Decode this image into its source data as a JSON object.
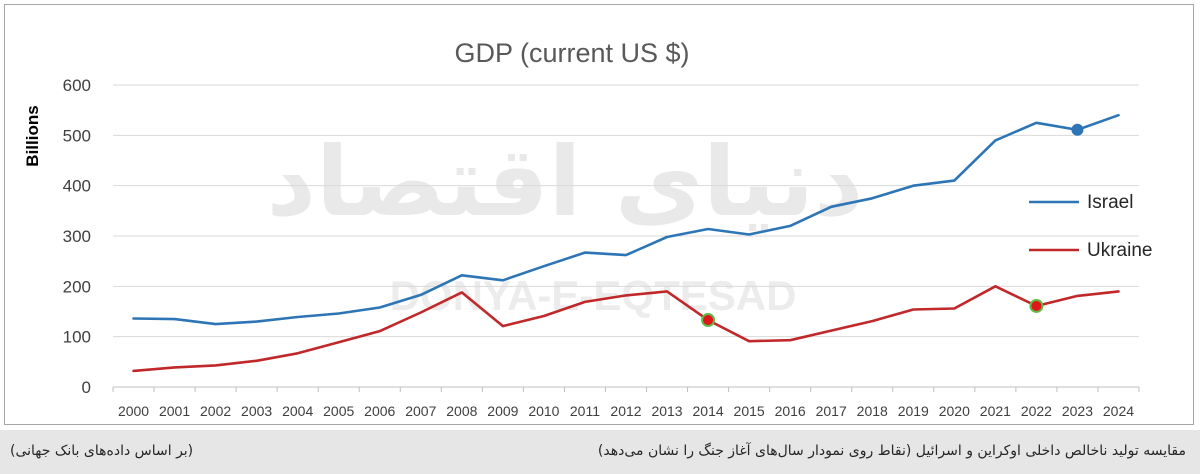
{
  "chart_data": {
    "type": "line",
    "title": "GDP (current US $)",
    "ylabel": "Billions",
    "xlabel": "",
    "ylim": [
      0,
      600
    ],
    "yticks": [
      0,
      100,
      200,
      300,
      400,
      500,
      600
    ],
    "grid": true,
    "legend_position": "right",
    "categories": [
      "2000",
      "2001",
      "2002",
      "2003",
      "2004",
      "2005",
      "2006",
      "2007",
      "2008",
      "2009",
      "2010",
      "2011",
      "2012",
      "2013",
      "2014",
      "2015",
      "2016",
      "2017",
      "2018",
      "2019",
      "2020",
      "2021",
      "2022",
      "2023",
      "2024"
    ],
    "series": [
      {
        "name": "Israel",
        "color": "#2e75b6",
        "values": [
          136,
          135,
          125,
          130,
          139,
          146,
          158,
          183,
          222,
          212,
          240,
          267,
          262,
          298,
          314,
          303,
          320,
          358,
          375,
          400,
          410,
          490,
          525,
          511,
          540
        ],
        "highlight_years": [
          "2023"
        ],
        "highlight_color": "#2e75b6"
      },
      {
        "name": "Ukraine",
        "color": "#c0282a",
        "values": [
          32,
          39,
          43,
          52,
          67,
          89,
          111,
          148,
          188,
          121,
          141,
          169,
          182,
          190,
          133,
          91,
          93,
          112,
          131,
          154,
          156,
          200,
          161,
          181,
          190
        ],
        "highlight_years": [
          "2014",
          "2022"
        ],
        "highlight_color": "#e0161b",
        "highlight_ring": "#5dbb46"
      }
    ],
    "watermark": {
      "arabic": "دنیای اقتصاد",
      "latin": "DONYA-E-EQTESAD"
    }
  },
  "caption": {
    "main": "مقایسه تولید ناخالص داخلی اوکراین و اسرائیل (نقاط روی نمودار سال‌های آغاز جنگ را نشان می‌دهد)",
    "source": "(بر اساس داده‌های بانک جهانی)"
  }
}
